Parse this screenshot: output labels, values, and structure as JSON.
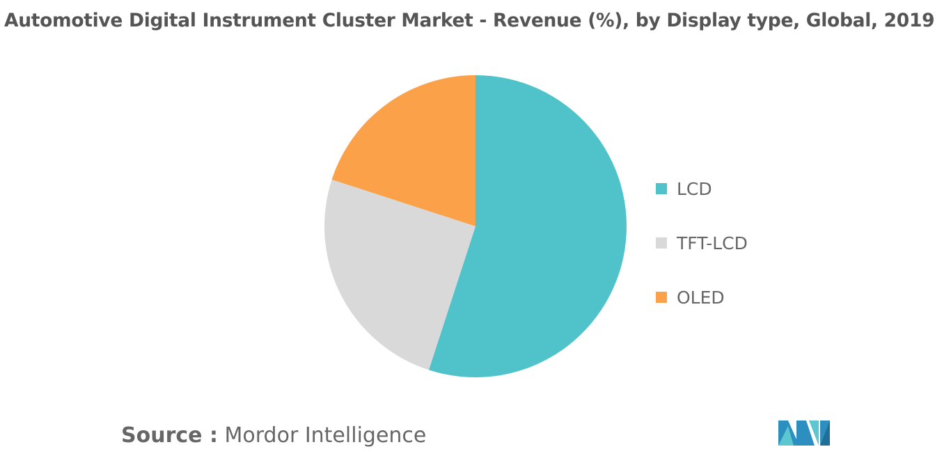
{
  "title": "Automotive Digital Instrument Cluster Market - Revenue (%), by Display type, Global, 2019",
  "source_label": "Source :",
  "source_value": "Mordor Intelligence",
  "logo_text": "MI",
  "chart_data": {
    "type": "pie",
    "title": "Automotive Digital Instrument Cluster Market - Revenue (%), by Display type, Global, 2019",
    "categories": [
      "LCD",
      "TFT-LCD",
      "OLED"
    ],
    "values": [
      55,
      25,
      20
    ],
    "colors": [
      "#4fc3c9",
      "#d9d9d9",
      "#fba14a"
    ],
    "start_angle": "top, clockwise",
    "legend_position": "right"
  }
}
